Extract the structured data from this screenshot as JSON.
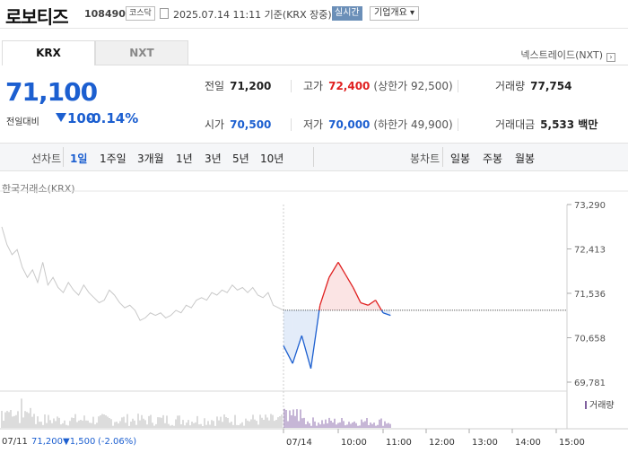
{
  "header": {
    "name": "로보티즈",
    "code": "108490",
    "market_badge": "코스닥",
    "timestamp": "2025.07.14 11:11 기준(KRX 장중)",
    "realtime_button": "실시간",
    "overview_button": "기업개요 ▾"
  },
  "tabs": [
    {
      "label": "KRX",
      "active": true
    },
    {
      "label": "NXT",
      "active": false
    }
  ],
  "nxt_link": "넥스트레이드(NXT)",
  "quote": {
    "price": "71,100",
    "change_label": "전일대비",
    "change_value": "100",
    "change_pct": "-0.14%",
    "direction": "down"
  },
  "stats": {
    "prev_close_label": "전일",
    "prev_close": "71,200",
    "high_label": "고가",
    "high": "72,400",
    "upper_limit": "(상한가 92,500)",
    "volume_label": "거래량",
    "volume": "77,754",
    "open_label": "시가",
    "open": "70,500",
    "low_label": "저가",
    "low": "70,000",
    "lower_limit": "(하한가 49,900)",
    "amount_label": "거래대금",
    "amount": "5,533 백만"
  },
  "toolbar": {
    "line_chart_label": "선차트",
    "line_periods": [
      "1일",
      "1주일",
      "3개월",
      "1년",
      "3년",
      "5년",
      "10년"
    ],
    "active_period": "1일",
    "candle_chart_label": "봉차트",
    "candle_periods": [
      "일봉",
      "주봉",
      "월봉"
    ]
  },
  "chart": {
    "market_label": "한국거래소(KRX)",
    "y_ticks": [
      "73,290",
      "72,413",
      "71,536",
      "70,658",
      "69,781"
    ],
    "x_ticks": [
      "07/14",
      "10:00",
      "11:00",
      "12:00",
      "13:00",
      "14:00",
      "15:00"
    ],
    "volume_legend": "거래량",
    "prev_day_summary": {
      "date": "07/11",
      "close": "71,200",
      "change": "▼1,500",
      "change_pct": "(-2.06%)"
    },
    "colors": {
      "up": "#e02020",
      "down": "#1c5fd0",
      "prev_day_line": "#c8c8c8",
      "volume": "#8c6cae",
      "baseline": "#555555"
    }
  },
  "chart_data": {
    "type": "line",
    "ylim": [
      69781,
      73290
    ],
    "baseline": 71200,
    "y_ticks": [
      73290,
      72413,
      71536,
      70658,
      69781
    ],
    "prev_day": [
      72850,
      72500,
      72300,
      72400,
      72050,
      71850,
      72000,
      71750,
      72150,
      71700,
      71850,
      71650,
      71550,
      71750,
      71600,
      71500,
      71700,
      71550,
      71450,
      71350,
      71400,
      71600,
      71500,
      71350,
      71250,
      71300,
      71200,
      71000,
      71050,
      71150,
      71100,
      71150,
      71050,
      71100,
      71200,
      71150,
      71300,
      71250,
      71400,
      71450,
      71400,
      71550,
      71500,
      71600,
      71550,
      71700,
      71600,
      71650,
      71550,
      71650,
      71500,
      71450,
      71550,
      71300,
      71250,
      71200
    ],
    "today_x": [
      "09:00",
      "09:10",
      "09:20",
      "09:30",
      "09:40",
      "09:50",
      "10:00",
      "10:10",
      "10:20",
      "10:30",
      "10:40",
      "10:50",
      "11:00",
      "11:10"
    ],
    "today": [
      70500,
      70150,
      70700,
      70050,
      71300,
      71850,
      72150,
      71900,
      71650,
      71350,
      71300,
      71400,
      71150,
      71100
    ]
  }
}
